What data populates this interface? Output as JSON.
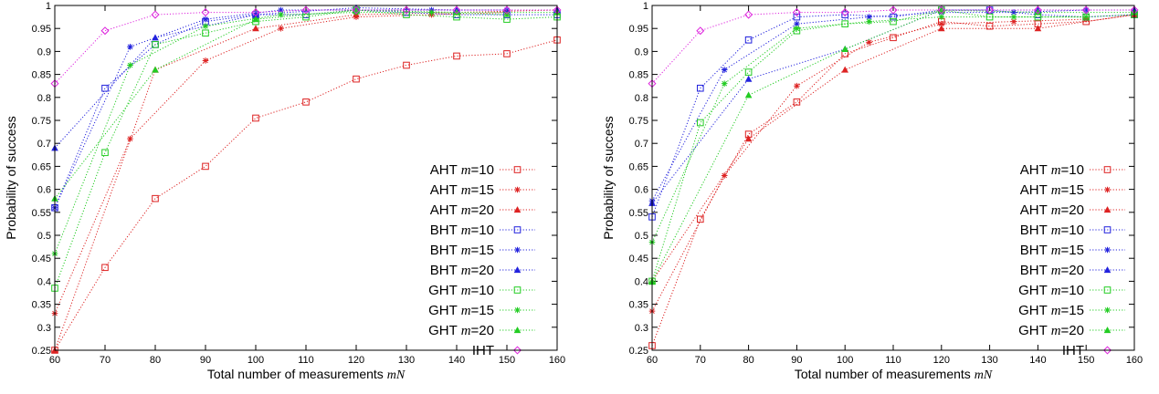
{
  "chart_data": [
    {
      "type": "line",
      "xlabel": "Total number of measurements mN",
      "ylabel": "Probability of success",
      "xlim": [
        60,
        160
      ],
      "ylim": [
        0.25,
        1
      ],
      "xticks": [
        60,
        70,
        80,
        90,
        100,
        110,
        120,
        130,
        140,
        150,
        160
      ],
      "yticks": [
        0.25,
        0.3,
        0.35,
        0.4,
        0.45,
        0.5,
        0.55,
        0.6,
        0.65,
        0.7,
        0.75,
        0.8,
        0.85,
        0.9,
        0.95,
        1
      ],
      "grid": false,
      "legend_position": "right",
      "series": [
        {
          "name": "AHT m=10",
          "color": "#dd2222",
          "marker": "square",
          "x": [
            60,
            70,
            80,
            90,
            100,
            110,
            120,
            130,
            140,
            150,
            160
          ],
          "y": [
            0.25,
            0.43,
            0.58,
            0.65,
            0.755,
            0.79,
            0.84,
            0.87,
            0.89,
            0.895,
            0.925
          ]
        },
        {
          "name": "AHT m=15",
          "color": "#dd2222",
          "marker": "star",
          "x": [
            60,
            75,
            90,
            105,
            120,
            135,
            150
          ],
          "y": [
            0.33,
            0.71,
            0.88,
            0.95,
            0.975,
            0.98,
            0.985
          ]
        },
        {
          "name": "AHT m=20",
          "color": "#dd2222",
          "marker": "triangle",
          "x": [
            60,
            80,
            100,
            120,
            140,
            160
          ],
          "y": [
            0.25,
            0.86,
            0.95,
            0.98,
            0.985,
            0.99
          ]
        },
        {
          "name": "BHT m=10",
          "color": "#2222dd",
          "marker": "square",
          "x": [
            60,
            70,
            80,
            90,
            100,
            110,
            120,
            130,
            140,
            150,
            160
          ],
          "y": [
            0.56,
            0.82,
            0.915,
            0.965,
            0.98,
            0.98,
            0.99,
            0.985,
            0.98,
            0.98,
            0.98
          ]
        },
        {
          "name": "BHT m=15",
          "color": "#2222dd",
          "marker": "star",
          "x": [
            60,
            75,
            90,
            105,
            120,
            135,
            150
          ],
          "y": [
            0.56,
            0.91,
            0.97,
            0.99,
            0.99,
            0.99,
            0.99
          ]
        },
        {
          "name": "BHT m=20",
          "color": "#2222dd",
          "marker": "triangle",
          "x": [
            60,
            80,
            100,
            120,
            140,
            160
          ],
          "y": [
            0.69,
            0.93,
            0.98,
            0.995,
            0.99,
            0.99
          ]
        },
        {
          "name": "GHT m=10",
          "color": "#22cc22",
          "marker": "square",
          "x": [
            60,
            70,
            80,
            90,
            100,
            110,
            120,
            130,
            140,
            150,
            160
          ],
          "y": [
            0.385,
            0.68,
            0.915,
            0.94,
            0.965,
            0.975,
            0.99,
            0.98,
            0.975,
            0.97,
            0.975
          ]
        },
        {
          "name": "GHT m=15",
          "color": "#22cc22",
          "marker": "star",
          "x": [
            60,
            75,
            90,
            105,
            120,
            135,
            150
          ],
          "y": [
            0.46,
            0.87,
            0.955,
            0.98,
            0.985,
            0.985,
            0.98
          ]
        },
        {
          "name": "GHT m=20",
          "color": "#22cc22",
          "marker": "triangle",
          "x": [
            60,
            80,
            100,
            120,
            140,
            160
          ],
          "y": [
            0.58,
            0.86,
            0.97,
            0.99,
            0.985,
            0.985
          ]
        },
        {
          "name": "IHT",
          "color": "#dd22dd",
          "marker": "diamond",
          "x": [
            60,
            70,
            80,
            90,
            100,
            110,
            120,
            130,
            140,
            150,
            160
          ],
          "y": [
            0.83,
            0.945,
            0.98,
            0.985,
            0.985,
            0.99,
            0.99,
            0.99,
            0.99,
            0.99,
            0.99
          ]
        }
      ]
    },
    {
      "type": "line",
      "xlabel": "Total number of measurements mN",
      "ylabel": "Probability of success",
      "xlim": [
        60,
        160
      ],
      "ylim": [
        0.25,
        1
      ],
      "xticks": [
        60,
        70,
        80,
        90,
        100,
        110,
        120,
        130,
        140,
        150,
        160
      ],
      "yticks": [
        0.25,
        0.3,
        0.35,
        0.4,
        0.45,
        0.5,
        0.55,
        0.6,
        0.65,
        0.7,
        0.75,
        0.8,
        0.85,
        0.9,
        0.95,
        1
      ],
      "grid": false,
      "legend_position": "right",
      "series": [
        {
          "name": "AHT m=10",
          "color": "#dd2222",
          "marker": "square",
          "x": [
            60,
            70,
            80,
            90,
            100,
            110,
            120,
            130,
            140,
            150,
            160
          ],
          "y": [
            0.26,
            0.535,
            0.72,
            0.79,
            0.895,
            0.93,
            0.965,
            0.955,
            0.96,
            0.965,
            0.98
          ]
        },
        {
          "name": "AHT m=15",
          "color": "#dd2222",
          "marker": "star",
          "x": [
            60,
            75,
            90,
            105,
            120,
            135,
            150
          ],
          "y": [
            0.335,
            0.63,
            0.825,
            0.92,
            0.96,
            0.965,
            0.97
          ]
        },
        {
          "name": "AHT m=20",
          "color": "#dd2222",
          "marker": "triangle",
          "x": [
            60,
            80,
            100,
            120,
            140,
            160
          ],
          "y": [
            0.4,
            0.71,
            0.86,
            0.95,
            0.95,
            0.98
          ]
        },
        {
          "name": "BHT m=10",
          "color": "#2222dd",
          "marker": "square",
          "x": [
            60,
            70,
            80,
            90,
            100,
            110,
            120,
            130,
            140,
            150,
            160
          ],
          "y": [
            0.54,
            0.82,
            0.925,
            0.975,
            0.98,
            0.975,
            0.99,
            0.99,
            0.98,
            0.975,
            0.98
          ]
        },
        {
          "name": "BHT m=15",
          "color": "#2222dd",
          "marker": "star",
          "x": [
            60,
            75,
            90,
            105,
            120,
            135,
            150
          ],
          "y": [
            0.575,
            0.86,
            0.96,
            0.975,
            0.985,
            0.985,
            0.99
          ]
        },
        {
          "name": "BHT m=20",
          "color": "#2222dd",
          "marker": "triangle",
          "x": [
            60,
            80,
            100,
            120,
            140,
            160
          ],
          "y": [
            0.57,
            0.84,
            0.905,
            0.99,
            0.99,
            0.99
          ]
        },
        {
          "name": "GHT m=10",
          "color": "#22cc22",
          "marker": "square",
          "x": [
            60,
            70,
            80,
            90,
            100,
            110,
            120,
            130,
            140,
            150,
            160
          ],
          "y": [
            0.4,
            0.745,
            0.855,
            0.945,
            0.96,
            0.965,
            0.99,
            0.975,
            0.975,
            0.975,
            0.98
          ]
        },
        {
          "name": "GHT m=15",
          "color": "#22cc22",
          "marker": "star",
          "x": [
            60,
            75,
            90,
            105,
            120,
            135,
            150
          ],
          "y": [
            0.485,
            0.83,
            0.95,
            0.965,
            0.975,
            0.975,
            0.975
          ]
        },
        {
          "name": "GHT m=20",
          "color": "#22cc22",
          "marker": "triangle",
          "x": [
            60,
            80,
            100,
            120,
            140,
            160
          ],
          "y": [
            0.4,
            0.805,
            0.905,
            0.99,
            0.985,
            0.985
          ]
        },
        {
          "name": "IHT",
          "color": "#dd22dd",
          "marker": "diamond",
          "x": [
            60,
            70,
            80,
            90,
            100,
            110,
            120,
            130,
            140,
            150,
            160
          ],
          "y": [
            0.83,
            0.945,
            0.98,
            0.985,
            0.985,
            0.99,
            0.99,
            0.99,
            0.99,
            0.99,
            0.99
          ]
        }
      ]
    }
  ]
}
